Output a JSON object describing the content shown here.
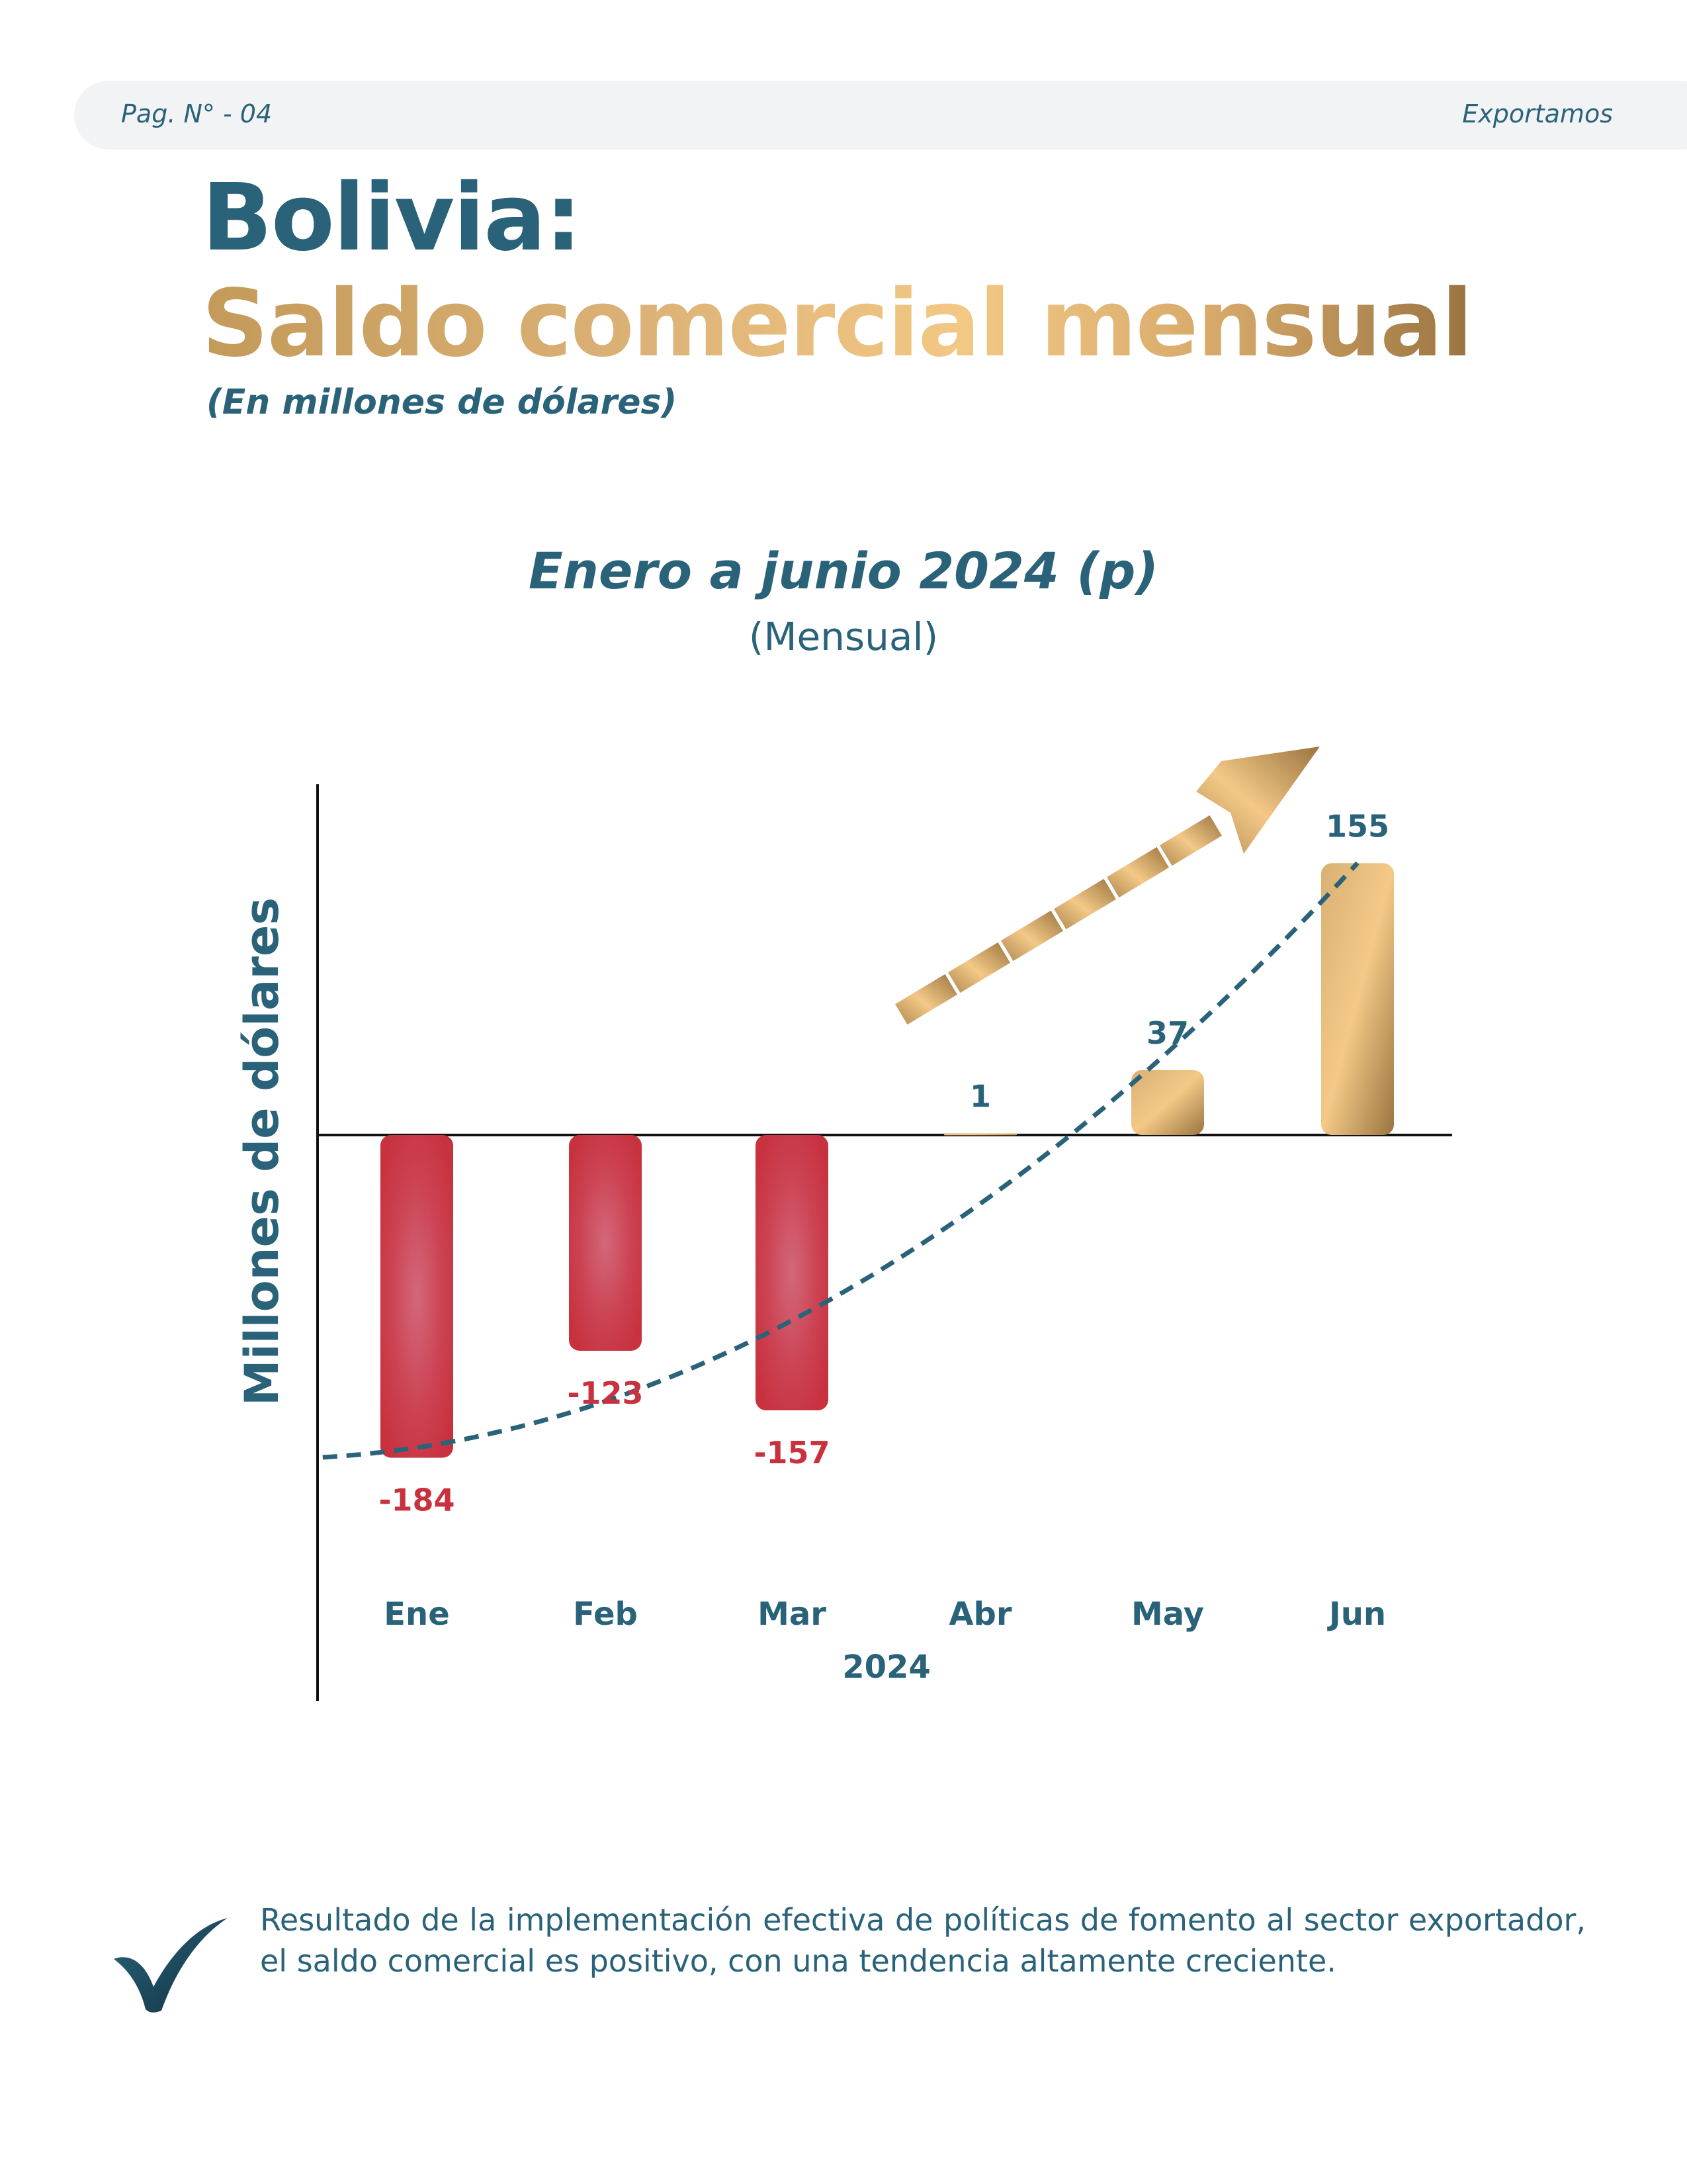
{
  "header": {
    "page_prefix": "Pag. N° - ",
    "page_number": "04",
    "section": "Exportamos"
  },
  "titles": {
    "country": "Bolivia:",
    "main": "Saldo comercial mensual",
    "units": "(En millones de dólares)"
  },
  "chart_data": {
    "type": "bar",
    "title": "Enero a junio 2024 (p)",
    "subtitle": "(Mensual)",
    "ylabel": "Millones de dólares",
    "xlabel": "2024",
    "categories": [
      "Ene",
      "Feb",
      "Mar",
      "Abr",
      "May",
      "Jun"
    ],
    "values": [
      -184,
      -123,
      -157,
      1,
      37,
      155
    ],
    "value_labels": [
      "-184",
      "-123",
      "-157",
      "1",
      "37",
      "155"
    ],
    "trendline": "dashed, increasing",
    "colors": {
      "negative": "#c8323f",
      "positive": "#e8bc78",
      "trend": "#2a6379",
      "text": "#2a6379",
      "negative_text": "#c8323f"
    }
  },
  "note": {
    "text": "Resultado de la implementación efectiva de políticas de fomento al sector exportador, el saldo comercial es positivo, con una tendencia altamente creciente.",
    "icon": "checkmark-icon"
  }
}
